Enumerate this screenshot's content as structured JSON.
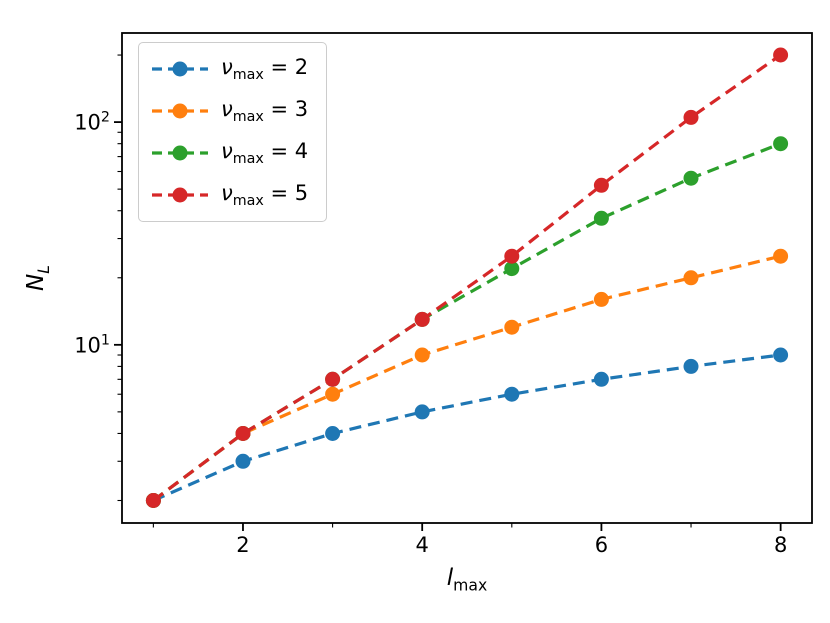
{
  "figure": {
    "background": "#ffffff",
    "frame_color": "#000000"
  },
  "chart_data": {
    "type": "line",
    "x": [
      1,
      2,
      3,
      4,
      5,
      6,
      7,
      8
    ],
    "series": [
      {
        "label": "ν_max = 2",
        "color": "#1f77b4",
        "values": [
          2,
          3,
          4,
          5,
          6,
          7,
          8,
          9
        ]
      },
      {
        "label": "ν_max = 3",
        "color": "#ff7f0e",
        "values": [
          2,
          4,
          6,
          9,
          12,
          16,
          20,
          25
        ]
      },
      {
        "label": "ν_max = 4",
        "color": "#2ca02c",
        "values": [
          2,
          4,
          7,
          13,
          22,
          37,
          56,
          80
        ]
      },
      {
        "label": "ν_max = 5",
        "color": "#d62728",
        "values": [
          2,
          4,
          7,
          13,
          25,
          52,
          105,
          200
        ]
      }
    ],
    "xlabel": "l_max",
    "ylabel": "N_L",
    "xlim": [
      0.65,
      8.35
    ],
    "yscale": "log",
    "ylim_log10": [
      0.2,
      2.4
    ],
    "x_major_ticks": [
      {
        "value": 2,
        "label": "2"
      },
      {
        "value": 4,
        "label": "4"
      },
      {
        "value": 6,
        "label": "6"
      },
      {
        "value": 8,
        "label": "8"
      }
    ],
    "x_minor_ticks": [
      1,
      3,
      5,
      7
    ],
    "y_major_ticks": [
      {
        "value": 10,
        "label": "10^1"
      },
      {
        "value": 100,
        "label": "10^2"
      }
    ],
    "y_minor_ticks": [
      2,
      3,
      4,
      5,
      6,
      7,
      8,
      9,
      20,
      30,
      40,
      50,
      60,
      70,
      80,
      90,
      200
    ],
    "line_style": "dashed",
    "marker": "circle",
    "legend_position": "upper-left",
    "grid": false
  }
}
